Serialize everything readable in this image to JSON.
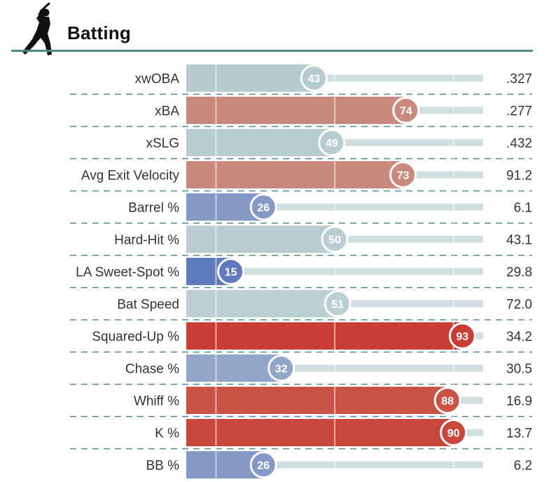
{
  "header": {
    "title": "Batting",
    "icon": "batter-silhouette-icon"
  },
  "colors": {
    "rule": "#4f8a8b",
    "track": "#cfdfe0",
    "dash": "#4f8a8b",
    "gridline": "#e7eeee"
  },
  "chart_data": {
    "type": "bar",
    "orientation": "horizontal",
    "xlim": [
      0,
      100
    ],
    "categories": [
      "xwOBA",
      "xBA",
      "xSLG",
      "Avg Exit Velocity",
      "Barrel %",
      "Hard-Hit %",
      "LA Sweet-Spot %",
      "Bat Speed",
      "Squared-Up %",
      "Chase %",
      "Whiff %",
      "K %",
      "BB %"
    ],
    "values": [
      43,
      74,
      49,
      73,
      26,
      50,
      15,
      51,
      93,
      32,
      88,
      90,
      26
    ],
    "stat_values": [
      ".327",
      ".277",
      ".432",
      "91.2",
      "6.1",
      "43.1",
      "29.8",
      "72.0",
      "34.2",
      "30.5",
      "16.9",
      "13.7",
      "6.2"
    ],
    "bar_colors": [
      "#b5cbd0",
      "#c98a7d",
      "#b8cdd2",
      "#c98a7d",
      "#8599c4",
      "#bacdd1",
      "#5f7bbd",
      "#bccfd3",
      "#c93f36",
      "#93a5c9",
      "#cb5346",
      "#c9463b",
      "#8599c4"
    ],
    "grid": true
  }
}
